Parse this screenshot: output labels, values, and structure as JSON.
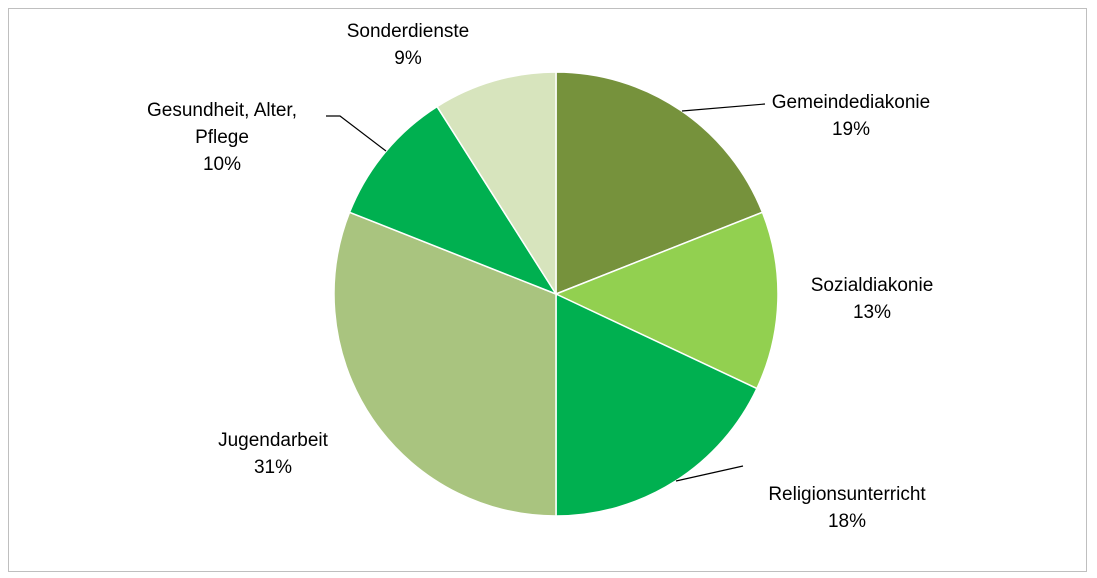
{
  "chart_data": {
    "type": "pie",
    "title": "",
    "slices": [
      {
        "name": "Gemeindediakonie",
        "value": 19,
        "label_lines": [
          "Gemeindediakonie"
        ],
        "pct_label": "19%",
        "color": "#76923c"
      },
      {
        "name": "Sozialdiakonie",
        "value": 13,
        "label_lines": [
          "Sozialdiakonie"
        ],
        "pct_label": "13%",
        "color": "#92d050"
      },
      {
        "name": "Religionsunterricht",
        "value": 18,
        "label_lines": [
          "Religionsunterricht"
        ],
        "pct_label": "18%",
        "color": "#00b050"
      },
      {
        "name": "Jugendarbeit",
        "value": 31,
        "label_lines": [
          "Jugendarbeit"
        ],
        "pct_label": "31%",
        "color": "#a9c47f"
      },
      {
        "name": "Gesundheit, Alter, Pflege",
        "value": 10,
        "label_lines": [
          "Gesundheit, Alter,",
          "Pflege"
        ],
        "pct_label": "10%",
        "color": "#00b050"
      },
      {
        "name": "Sonderdienste",
        "value": 9,
        "label_lines": [
          "Sonderdienste"
        ],
        "pct_label": "9%",
        "color": "#d7e4bd"
      }
    ],
    "legend": "none"
  }
}
